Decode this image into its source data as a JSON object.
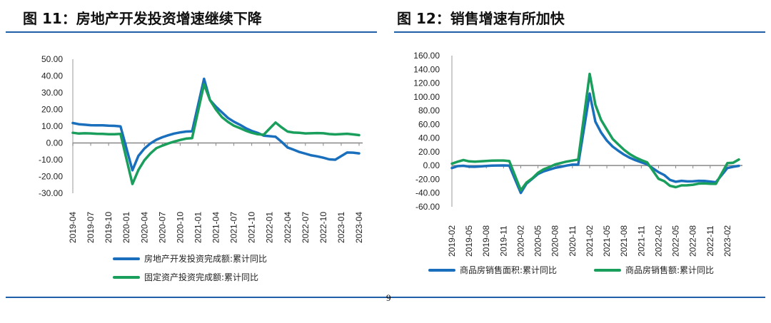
{
  "page_number": "9",
  "colors": {
    "blue": "#1a6fbd",
    "green": "#1a9e5c",
    "rule": "#1f5fa8"
  },
  "chart_data": [
    {
      "type": "line",
      "title": "图 11：房地产开发投资增速继续下降",
      "ylim": [
        -30,
        50
      ],
      "yticks": [
        "50.00",
        "40.00",
        "30.00",
        "20.00",
        "10.00",
        "0.00",
        "-10.00",
        "-20.00",
        "-30.00"
      ],
      "ytick_values": [
        50,
        40,
        30,
        20,
        10,
        0,
        -10,
        -20,
        -30
      ],
      "xticks": [
        "2019-04",
        "2019-07",
        "2019-10",
        "2020-01",
        "2020-04",
        "2020-07",
        "2020-10",
        "2021-01",
        "2021-04",
        "2021-07",
        "2021-10",
        "2022-01",
        "2022-04",
        "2022-07",
        "2022-10",
        "2023-01",
        "2023-04"
      ],
      "x_start": "2019-04",
      "x_end": "2023-04",
      "legend": "bottom",
      "series": [
        {
          "name": "房地产开发投资完成额:累计同比",
          "color": "blue",
          "values": [
            11.9,
            11.2,
            10.9,
            10.6,
            10.5,
            10.5,
            10.3,
            10.2,
            9.9,
            null,
            -16.3,
            -7.7,
            -3.3,
            -0.3,
            1.9,
            3.4,
            4.6,
            5.6,
            6.3,
            6.8,
            7.0,
            null,
            38.3,
            25.6,
            21.6,
            18.3,
            15.0,
            12.7,
            10.9,
            8.8,
            7.2,
            6.0,
            4.4,
            null,
            3.7,
            0.7,
            -2.7,
            -4.0,
            -5.4,
            -6.4,
            -7.4,
            -8.0,
            -8.8,
            -9.8,
            -10.0,
            null,
            -5.7,
            -5.8,
            -6.2
          ]
        },
        {
          "name": "固定资产投资完成额:累计同比",
          "color": "green",
          "values": [
            6.1,
            5.6,
            5.8,
            5.7,
            5.5,
            5.4,
            5.2,
            5.2,
            5.4,
            null,
            -24.5,
            -16.1,
            -10.3,
            -6.3,
            -3.1,
            -1.6,
            -0.3,
            0.8,
            1.8,
            2.6,
            2.9,
            null,
            35.0,
            25.6,
            19.9,
            15.4,
            12.6,
            10.3,
            8.9,
            7.3,
            6.1,
            5.2,
            4.9,
            null,
            12.2,
            9.3,
            6.8,
            6.2,
            6.1,
            5.7,
            5.8,
            5.9,
            5.8,
            5.3,
            5.1,
            null,
            5.5,
            5.1,
            4.7
          ]
        }
      ]
    },
    {
      "type": "line",
      "title": "图 12：销售增速有所加快",
      "ylim": [
        -60,
        160
      ],
      "yticks": [
        "160.00",
        "140.00",
        "120.00",
        "100.00",
        "80.00",
        "60.00",
        "40.00",
        "20.00",
        "0.00",
        "-20.00",
        "-40.00",
        "-60.00"
      ],
      "ytick_values": [
        160,
        140,
        120,
        100,
        80,
        60,
        40,
        20,
        0,
        -20,
        -40,
        -60
      ],
      "xticks": [
        "2019-02",
        "2019-05",
        "2019-08",
        "2019-11",
        "2020-02",
        "2020-05",
        "2020-08",
        "2020-11",
        "2021-02",
        "2021-05",
        "2021-08",
        "2021-11",
        "2022-02",
        "2022-05",
        "2022-08",
        "2022-11",
        "2023-02"
      ],
      "x_start": "2019-02",
      "x_end": "2023-04",
      "legend": "bottom",
      "series": [
        {
          "name": "商品房销售面积:累计同比",
          "color": "blue",
          "values": [
            -3.6,
            -0.9,
            -0.3,
            -1.6,
            -1.8,
            -1.3,
            -0.6,
            -0.1,
            0.1,
            0.2,
            -0.1,
            null,
            -39.9,
            -26.3,
            -19.3,
            -12.3,
            -8.4,
            -5.8,
            -3.3,
            -1.8,
            0.0,
            1.3,
            1.3,
            null,
            104.9,
            63.8,
            48.1,
            36.3,
            27.7,
            21.5,
            15.9,
            11.3,
            7.8,
            4.8,
            1.9,
            null,
            -9.6,
            -13.8,
            -20.9,
            -23.6,
            -22.2,
            -23.1,
            -23.0,
            -22.2,
            -22.3,
            -23.3,
            -24.3,
            null,
            -3.6,
            -1.8,
            -0.4
          ]
        },
        {
          "name": "商品房销售额:累计同比",
          "color": "green",
          "values": [
            2.8,
            5.6,
            8.1,
            6.1,
            5.6,
            6.2,
            6.7,
            7.1,
            7.3,
            7.3,
            6.5,
            null,
            -35.9,
            -24.7,
            -18.6,
            -10.6,
            -5.4,
            -2.1,
            1.6,
            3.7,
            5.8,
            7.2,
            8.7,
            null,
            133.4,
            88.5,
            66.4,
            52.4,
            38.9,
            30.7,
            22.9,
            16.6,
            11.8,
            8.0,
            4.8,
            null,
            -19.3,
            -22.7,
            -29.5,
            -31.5,
            -28.9,
            -28.8,
            -27.9,
            -26.3,
            -26.1,
            -26.6,
            -26.7,
            null,
            3.5,
            4.1,
            8.8
          ]
        }
      ]
    }
  ]
}
